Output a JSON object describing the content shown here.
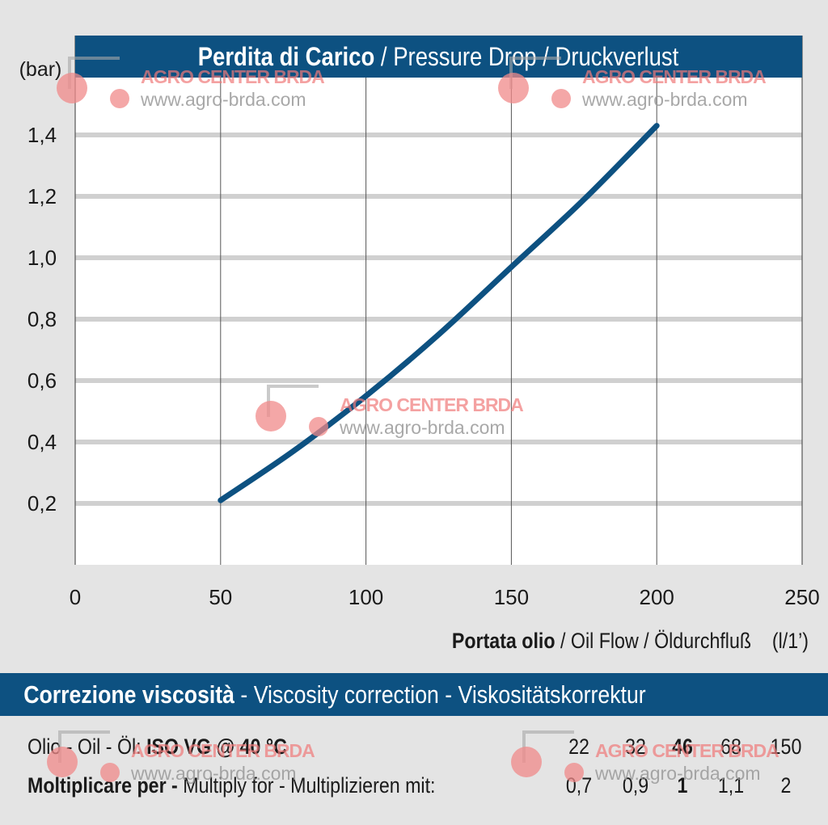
{
  "chart_data": {
    "type": "line",
    "title_bold": "Perdita di Carico",
    "title_rest": " / Pressure Drop / Druckverlust",
    "ylabel": "(bar)",
    "xlabel_bold": "Portata olio",
    "xlabel_rest": " / Oil Flow  / Öldurchfluß",
    "xunit": "(l/1’)",
    "xlim": [
      0,
      250
    ],
    "ylim": [
      0.0,
      1.6
    ],
    "x_ticks": [
      0,
      50,
      100,
      150,
      200,
      250
    ],
    "y_ticks": [
      0.2,
      0.4,
      0.6,
      0.8,
      1.0,
      1.2,
      1.4
    ],
    "y_tick_labels": [
      "0,2",
      "0,4",
      "0,6",
      "0,8",
      "1,0",
      "1,2",
      "1,4"
    ],
    "grid": true,
    "series": [
      {
        "x": [
          50,
          75,
          100,
          125,
          150,
          175,
          200
        ],
        "y": [
          0.21,
          0.37,
          0.55,
          0.75,
          0.97,
          1.19,
          1.43
        ]
      }
    ],
    "line_color": "#0d5181"
  },
  "viscosity": {
    "title_bold": "Correzione viscosità",
    "title_rest": "  -  Viscosity correction  -  Viskositätskorrektur",
    "oil_label_prefix": "Olio - Oil - Öl: ",
    "oil_label_bold": "ISO VG @ 40 °C",
    "multiply_label_bold": "Moltiplicare per - ",
    "multiply_label_rest": "Multiply for - Multiplizieren mit:",
    "iso_values": [
      "22",
      "32",
      "46",
      "68",
      "150"
    ],
    "factors": [
      "0,7",
      "0,9",
      "1",
      "1,1",
      "2"
    ],
    "bold_index": 2
  },
  "watermark": {
    "brand": "AGRO CENTER BRDA",
    "url": "www.agro-brda.com"
  },
  "colors": {
    "banner": "#0d5181",
    "background": "#e4e4e4",
    "grid": "#d0d0d0",
    "watermark_red": "#f07a7a"
  }
}
